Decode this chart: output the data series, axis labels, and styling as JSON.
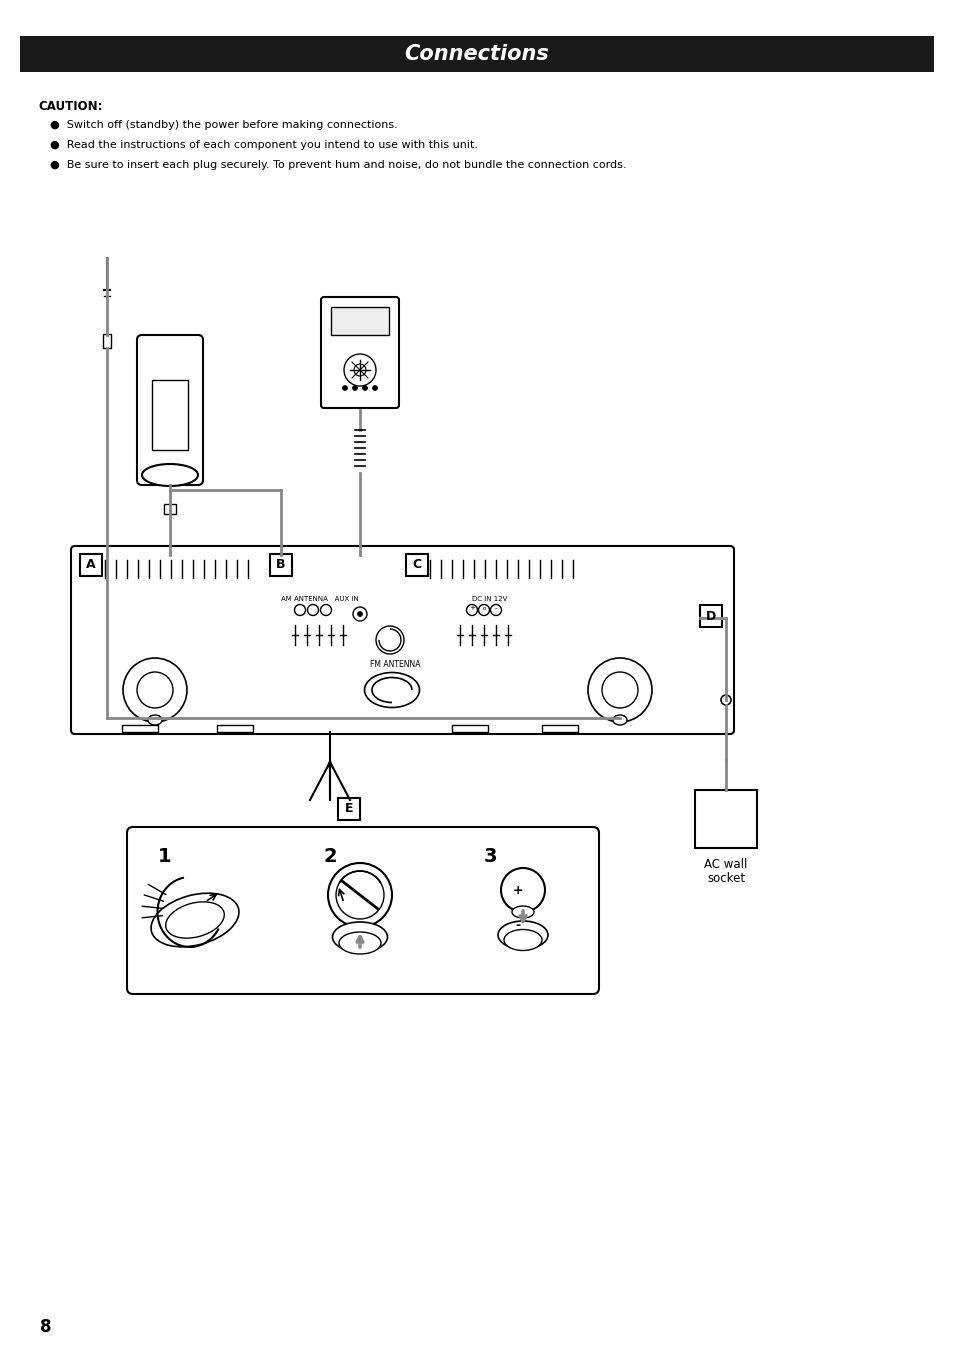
{
  "title": "Connections",
  "title_bg": "#1a1a1a",
  "title_color": "#ffffff",
  "title_fontsize": 15,
  "bg_color": "#ffffff",
  "caution_title": "CAUTION:",
  "bullet1": "Switch off (standby) the power before making connections.",
  "bullet2": "Read the instructions of each component you intend to use with this unit.",
  "bullet3": "Be sure to insert each plug securely. To prevent hum and noise, do not bundle the connection cords.",
  "page_number": "8",
  "ac_wall_label1": "AC wall",
  "ac_wall_label2": "socket",
  "wire_color": "#888888",
  "wire_lw": 2.0,
  "device_lw": 1.5
}
